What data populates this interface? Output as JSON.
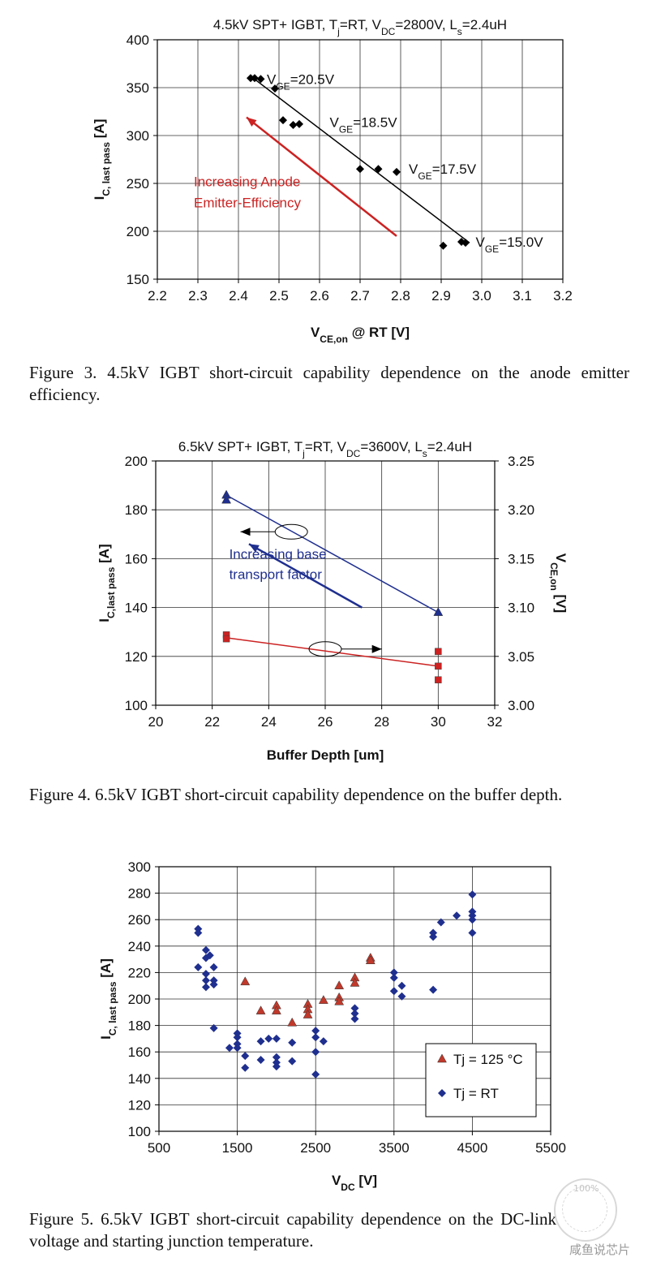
{
  "chart_data": [
    {
      "type": "scatter",
      "title_parts": [
        "4.5kV SPT+ IGBT, T",
        "j",
        "=RT, V",
        "DC",
        "=2800V, L",
        "s",
        "=2.4uH"
      ],
      "xlabel_parts": [
        "V",
        "CE,on",
        " @ RT [V]"
      ],
      "ylabel_parts": [
        "I",
        "C, last pass",
        " [A]"
      ],
      "xlim": [
        2.2,
        3.2
      ],
      "ylim": [
        150,
        400
      ],
      "xticks": [
        "2.2",
        "2.3",
        "2.4",
        "2.5",
        "2.6",
        "2.7",
        "2.8",
        "2.9",
        "3.0",
        "3.1",
        "3.2"
      ],
      "yticks": [
        "150",
        "200",
        "250",
        "300",
        "350",
        "400"
      ],
      "grid": true,
      "series": [
        {
          "marker": "diamond",
          "color": "#000000",
          "points": [
            [
              2.43,
              360
            ],
            [
              2.44,
              360
            ],
            [
              2.455,
              359
            ],
            [
              2.49,
              349
            ],
            [
              2.51,
              316
            ],
            [
              2.535,
              311
            ],
            [
              2.55,
              312
            ],
            [
              2.7,
              265
            ],
            [
              2.745,
              265
            ],
            [
              2.79,
              262
            ],
            [
              2.905,
              185
            ],
            [
              2.95,
              189
            ],
            [
              2.96,
              188
            ]
          ]
        }
      ],
      "fit_line": {
        "from": [
          2.43,
          362
        ],
        "to": [
          2.97,
          188
        ],
        "color": "#000000"
      },
      "annotations": [
        {
          "id": "vge1",
          "text_parts": [
            "V",
            "GE",
            "=20.5V"
          ],
          "x": 2.47,
          "y": 354
        },
        {
          "id": "vge2",
          "text_parts": [
            "V",
            "GE",
            "=18.5V"
          ],
          "x": 2.625,
          "y": 309
        },
        {
          "id": "vge3",
          "text_parts": [
            "V",
            "GE",
            "=17.5V"
          ],
          "x": 2.82,
          "y": 260
        },
        {
          "id": "vge4",
          "text_parts": [
            "V",
            "GE",
            "=15.0V"
          ],
          "x": 2.985,
          "y": 184
        }
      ],
      "arrow": {
        "from": [
          2.79,
          195
        ],
        "to": [
          2.42,
          319
        ],
        "color": "#cc2222"
      },
      "arrow_label": {
        "lines": [
          "Increasing Anode",
          "Emitter-Efficiency"
        ],
        "x": 2.29,
        "y": 247,
        "color": "#cc2222"
      }
    },
    {
      "type": "line",
      "title_parts": [
        "6.5kV SPT+ IGBT, T",
        "j",
        "=RT, V",
        "DC",
        "=3600V, L",
        "s",
        "=2.4uH"
      ],
      "xlabel": "Buffer Depth [um]",
      "ylabel_parts": [
        "I",
        "C,last pass",
        " [A]"
      ],
      "y2label_parts": [
        "V",
        "CE,on",
        " [V]"
      ],
      "xlim": [
        20,
        32
      ],
      "ylim": [
        100,
        200
      ],
      "y2lim": [
        3.0,
        3.25
      ],
      "xticks": [
        "20",
        "22",
        "24",
        "26",
        "28",
        "30",
        "32"
      ],
      "yticks": [
        "100",
        "120",
        "140",
        "160",
        "180",
        "200"
      ],
      "y2ticks": [
        "3.00",
        "3.05",
        "3.10",
        "3.15",
        "3.20",
        "3.25"
      ],
      "grid": true,
      "series": [
        {
          "name": "",
          "axis": "left",
          "marker": "triangle",
          "color": "#1f2f8f",
          "points": [
            [
              22.5,
              186
            ],
            [
              22.5,
              184
            ],
            [
              30,
              138
            ]
          ],
          "line": [
            [
              22.5,
              186
            ],
            [
              30,
              138
            ]
          ]
        },
        {
          "name": "",
          "axis": "right",
          "marker": "square",
          "color": "#cc2222",
          "points": [
            [
              22.5,
              3.072
            ],
            [
              22.5,
              3.068
            ],
            [
              30,
              3.055
            ],
            [
              30,
              3.04
            ],
            [
              30,
              3.026
            ]
          ],
          "line": [
            [
              22.5,
              3.069
            ],
            [
              30,
              3.04
            ]
          ]
        }
      ],
      "arrow": {
        "from": [
          27.3,
          140
        ],
        "to": [
          23.3,
          166
        ],
        "color": "#1f2f8f"
      },
      "arrow_label": {
        "lines": [
          "Increasing base",
          "transport factor"
        ],
        "x": 22.6,
        "y": 160,
        "color": "#1f2f8f"
      },
      "axis_markers": [
        {
          "cx": 24.8,
          "cy": 171,
          "arrow_to_x": 23.0,
          "side": "left"
        },
        {
          "cx": 26.0,
          "cy": 123,
          "arrow_to_x": 28.0,
          "side": "right"
        }
      ]
    },
    {
      "type": "scatter",
      "title": "",
      "xlabel_parts": [
        "V",
        "DC",
        " [V]"
      ],
      "ylabel_parts": [
        "I",
        "C, last pass",
        " [A]"
      ],
      "xlim": [
        500,
        5500
      ],
      "ylim": [
        100,
        300
      ],
      "xticks": [
        "500",
        "1500",
        "2500",
        "3500",
        "4500",
        "5500"
      ],
      "yticks": [
        "100",
        "120",
        "140",
        "160",
        "180",
        "200",
        "220",
        "240",
        "260",
        "280",
        "300"
      ],
      "grid": true,
      "legend_position": "bottom-right",
      "series": [
        {
          "name": "Tj = 125 °C",
          "marker": "triangle",
          "color": "#c0392b",
          "points": [
            [
              1600,
              213
            ],
            [
              1800,
              191
            ],
            [
              2000,
              195
            ],
            [
              2000,
              191
            ],
            [
              2200,
              182
            ],
            [
              2400,
              196
            ],
            [
              2400,
              192
            ],
            [
              2400,
              188
            ],
            [
              2600,
              199
            ],
            [
              2800,
              210
            ],
            [
              2800,
              201
            ],
            [
              2800,
              198
            ],
            [
              3000,
              216
            ],
            [
              3000,
              212
            ],
            [
              3200,
              231
            ],
            [
              3200,
              229
            ]
          ]
        },
        {
          "name": "Tj = RT",
          "marker": "diamond",
          "color": "#1f2f8f",
          "points": [
            [
              1000,
              253
            ],
            [
              1000,
              250
            ],
            [
              1000,
              224
            ],
            [
              1100,
              237
            ],
            [
              1100,
              231
            ],
            [
              1100,
              219
            ],
            [
              1100,
              214
            ],
            [
              1100,
              209
            ],
            [
              1150,
              233
            ],
            [
              1200,
              224
            ],
            [
              1200,
              214
            ],
            [
              1200,
              211
            ],
            [
              1200,
              178
            ],
            [
              1400,
              163
            ],
            [
              1500,
              174
            ],
            [
              1500,
              171
            ],
            [
              1500,
              166
            ],
            [
              1500,
              163
            ],
            [
              1600,
              157
            ],
            [
              1600,
              148
            ],
            [
              1800,
              168
            ],
            [
              1800,
              154
            ],
            [
              1900,
              170
            ],
            [
              2000,
              170
            ],
            [
              2000,
              156
            ],
            [
              2000,
              152
            ],
            [
              2000,
              149
            ],
            [
              2200,
              167
            ],
            [
              2200,
              153
            ],
            [
              2500,
              176
            ],
            [
              2500,
              171
            ],
            [
              2500,
              160
            ],
            [
              2500,
              143
            ],
            [
              2600,
              168
            ],
            [
              3000,
              193
            ],
            [
              3000,
              189
            ],
            [
              3000,
              185
            ],
            [
              3500,
              220
            ],
            [
              3500,
              216
            ],
            [
              3500,
              206
            ],
            [
              3600,
              210
            ],
            [
              3600,
              202
            ],
            [
              4000,
              250
            ],
            [
              4000,
              247
            ],
            [
              4000,
              207
            ],
            [
              4100,
              258
            ],
            [
              4300,
              263
            ],
            [
              4500,
              279
            ],
            [
              4500,
              266
            ],
            [
              4500,
              263
            ],
            [
              4500,
              260
            ],
            [
              4500,
              250
            ]
          ]
        }
      ]
    }
  ],
  "captions": {
    "fig3": "Figure 3.  4.5kV IGBT short-circuit capability dependence on the anode emitter efficiency.",
    "fig4": "Figure 4.  6.5kV IGBT short-circuit capability dependence on the buffer depth.",
    "fig5": "Figure 5.  6.5kV IGBT short-circuit capability dependence on the DC-link voltage and starting junction temperature."
  },
  "watermark": {
    "text": "咸鱼说芯片",
    "badge": "100%"
  }
}
